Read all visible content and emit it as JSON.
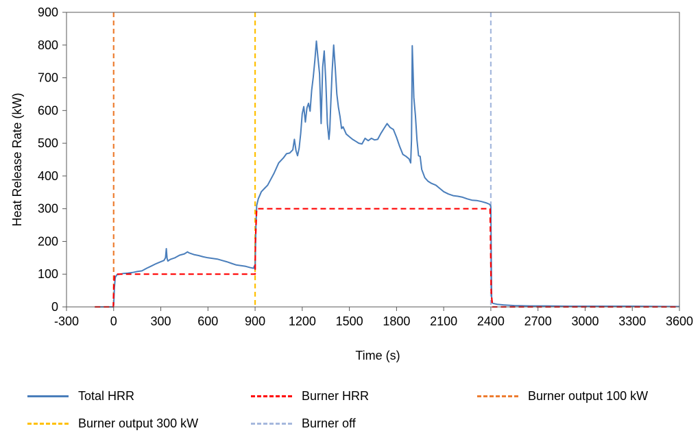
{
  "chart_data": {
    "type": "line",
    "xlabel": "Time (s)",
    "ylabel": "Heat Release Rate (kW)",
    "xlim": [
      -300,
      3600
    ],
    "ylim": [
      0,
      900
    ],
    "xticks": [
      -300,
      0,
      300,
      600,
      900,
      1200,
      1500,
      1800,
      2100,
      2400,
      2700,
      3000,
      3300,
      3600
    ],
    "yticks": [
      0,
      100,
      200,
      300,
      400,
      500,
      600,
      700,
      800,
      900
    ],
    "grid": false,
    "legend_position": "bottom",
    "series": [
      {
        "name": "Total HRR",
        "color": "#4a7ebb",
        "style": "solid",
        "x": [
          -120,
          -2,
          0,
          5,
          10,
          20,
          40,
          60,
          90,
          120,
          150,
          180,
          210,
          240,
          270,
          300,
          320,
          330,
          335,
          340,
          345,
          360,
          390,
          420,
          450,
          470,
          480,
          510,
          540,
          570,
          600,
          630,
          660,
          690,
          720,
          750,
          780,
          810,
          840,
          870,
          890,
          895,
          900,
          905,
          910,
          920,
          940,
          960,
          980,
          1000,
          1020,
          1050,
          1080,
          1100,
          1120,
          1140,
          1150,
          1160,
          1170,
          1180,
          1190,
          1200,
          1210,
          1220,
          1230,
          1240,
          1250,
          1260,
          1270,
          1280,
          1290,
          1300,
          1310,
          1320,
          1330,
          1340,
          1350,
          1360,
          1370,
          1375,
          1380,
          1390,
          1400,
          1410,
          1420,
          1430,
          1440,
          1450,
          1460,
          1480,
          1500,
          1520,
          1540,
          1560,
          1580,
          1600,
          1620,
          1640,
          1660,
          1680,
          1700,
          1720,
          1740,
          1760,
          1780,
          1800,
          1820,
          1840,
          1860,
          1880,
          1890,
          1895,
          1900,
          1905,
          1910,
          1920,
          1930,
          1940,
          1950,
          1960,
          1980,
          2000,
          2020,
          2050,
          2080,
          2100,
          2130,
          2160,
          2190,
          2220,
          2250,
          2280,
          2310,
          2340,
          2370,
          2390,
          2395,
          2400,
          2405,
          2410,
          2420,
          2440,
          2480,
          2550,
          2650,
          2750,
          2900,
          3100,
          3300,
          3600
        ],
        "y": [
          0,
          0,
          5,
          60,
          90,
          98,
          100,
          102,
          103,
          105,
          108,
          110,
          118,
          125,
          132,
          138,
          142,
          150,
          178,
          148,
          140,
          145,
          150,
          158,
          162,
          168,
          165,
          160,
          157,
          153,
          150,
          148,
          146,
          142,
          138,
          133,
          128,
          126,
          124,
          120,
          118,
          125,
          115,
          240,
          310,
          330,
          352,
          362,
          372,
          390,
          408,
          440,
          455,
          468,
          470,
          480,
          512,
          478,
          462,
          485,
          530,
          590,
          612,
          565,
          608,
          622,
          598,
          662,
          702,
          752,
          812,
          760,
          712,
          560,
          732,
          782,
          690,
          560,
          512,
          540,
          602,
          718,
          800,
          730,
          650,
          610,
          582,
          545,
          550,
          528,
          520,
          512,
          506,
          500,
          498,
          515,
          508,
          515,
          510,
          512,
          530,
          545,
          560,
          548,
          542,
          518,
          490,
          466,
          460,
          452,
          440,
          510,
          798,
          720,
          640,
          585,
          510,
          462,
          460,
          420,
          395,
          384,
          378,
          372,
          360,
          352,
          345,
          340,
          338,
          335,
          330,
          326,
          325,
          322,
          318,
          314,
          312,
          306,
          28,
          12,
          10,
          8,
          6,
          4,
          3,
          3,
          2,
          2,
          2,
          1
        ]
      },
      {
        "name": "Burner HRR",
        "color": "#ff0000",
        "style": "dashed",
        "x": [
          -120,
          -2,
          0,
          5,
          10,
          900,
          902,
          910,
          2395,
          2398,
          2402,
          2410,
          3600
        ],
        "y": [
          0,
          0,
          50,
          98,
          100,
          100,
          200,
          300,
          300,
          200,
          50,
          0,
          0
        ]
      }
    ],
    "vlines": [
      {
        "name": "Burner output 100 kW",
        "x": 0,
        "color": "#ed7d31"
      },
      {
        "name": "Burner output 300 kW",
        "x": 900,
        "color": "#ffc000"
      },
      {
        "name": "Burner off",
        "x": 2400,
        "color": "#a5b8dd"
      }
    ]
  }
}
